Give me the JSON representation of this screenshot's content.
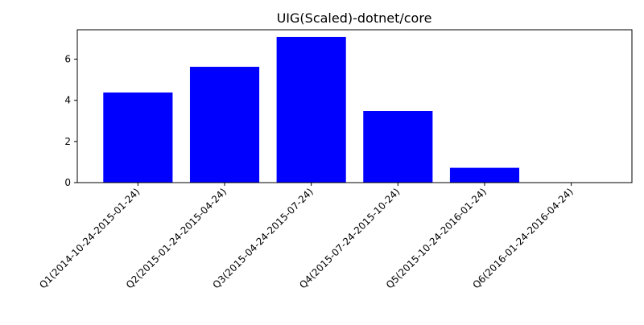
{
  "chart_data": {
    "type": "bar",
    "title": "UIG(Scaled)-dotnet/core",
    "xlabel": "",
    "ylabel": "",
    "categories": [
      "Q1(2014-10-24-2015-01-24)",
      "Q2(2015-01-24-2015-04-24)",
      "Q3(2015-04-24-2015-07-24)",
      "Q4(2015-07-24-2015-10-24)",
      "Q5(2015-10-24-2016-01-24)",
      "Q6(2016-01-24-2016-04-24)"
    ],
    "values": [
      4.38,
      5.63,
      7.08,
      3.48,
      0.72,
      0.0
    ],
    "ylim": [
      0,
      7.43
    ],
    "yticks": [
      0,
      2,
      4,
      6
    ],
    "bar_color": "#0000ff",
    "grid": false,
    "legend": "none"
  }
}
